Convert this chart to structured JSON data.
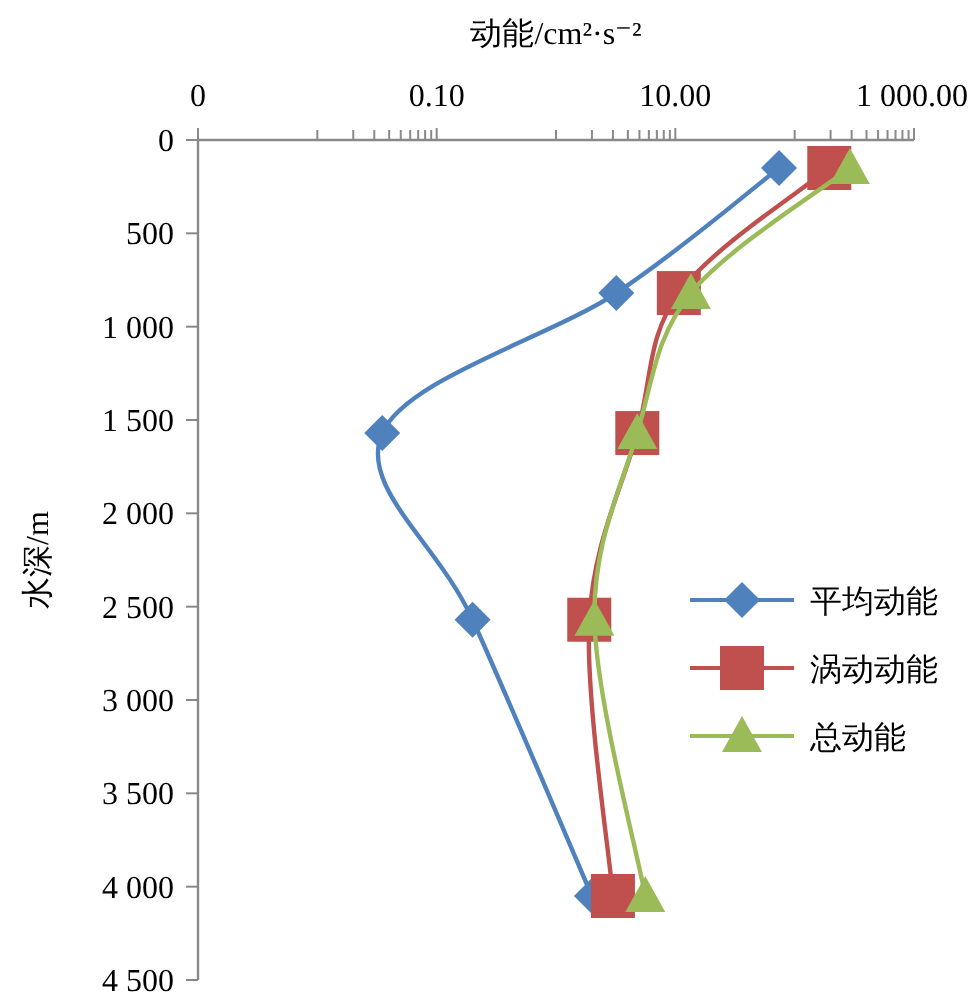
{
  "chart_data": {
    "type": "line",
    "xlabel": "动能/cm²·s⁻²",
    "ylabel": "水深/m",
    "log": "x",
    "xlim": [
      0.001,
      1000
    ],
    "xticks": [
      {
        "value": 0.001,
        "label": "0"
      },
      {
        "value": 0.01,
        "label": null
      },
      {
        "value": 0.02,
        "label": null
      },
      {
        "value": 0.03,
        "label": null
      },
      {
        "value": 0.04,
        "label": null
      },
      {
        "value": 0.05,
        "label": null
      },
      {
        "value": 0.06,
        "label": null
      },
      {
        "value": 0.07,
        "label": null
      },
      {
        "value": 0.08,
        "label": null
      },
      {
        "value": 0.09,
        "label": null
      },
      {
        "value": 0.1,
        "label": "0.10"
      },
      {
        "value": 1,
        "label": null
      },
      {
        "value": 2,
        "label": null
      },
      {
        "value": 3,
        "label": null
      },
      {
        "value": 4,
        "label": null
      },
      {
        "value": 5,
        "label": null
      },
      {
        "value": 6,
        "label": null
      },
      {
        "value": 7,
        "label": null
      },
      {
        "value": 8,
        "label": null
      },
      {
        "value": 9,
        "label": null
      },
      {
        "value": 10,
        "label": "10.00"
      },
      {
        "value": 100,
        "label": null
      },
      {
        "value": 200,
        "label": null
      },
      {
        "value": 300,
        "label": null
      },
      {
        "value": 400,
        "label": null
      },
      {
        "value": 500,
        "label": null
      },
      {
        "value": 600,
        "label": null
      },
      {
        "value": 700,
        "label": null
      },
      {
        "value": 800,
        "label": null
      },
      {
        "value": 900,
        "label": null
      },
      {
        "value": 1000,
        "label": "1 000.00"
      }
    ],
    "ylim": [
      4500,
      0
    ],
    "yticks": [
      0,
      500,
      {
        "value": 1000,
        "label": "1 000"
      },
      {
        "value": 1500,
        "label": "1 500"
      },
      {
        "value": 2000,
        "label": "2 000"
      },
      {
        "value": 2500,
        "label": "2 500"
      },
      {
        "value": 3000,
        "label": "3 000"
      },
      {
        "value": 3500,
        "label": "3 500"
      },
      {
        "value": 4000,
        "label": "4 000"
      },
      {
        "value": 4500,
        "label": "4 500"
      }
    ],
    "grid": false,
    "legend": "right",
    "line_style": "solid",
    "series": [
      {
        "name": "平均动能",
        "color": "#4f81bd",
        "marker": "diamond",
        "x": [
          74,
          3.2,
          0.035,
          0.2,
          2.0
        ],
        "values": [
          150,
          820,
          1570,
          2570,
          4050
        ]
      },
      {
        "name": "涡动动能",
        "color": "#c0504d",
        "marker": "square",
        "x": [
          195,
          10.7,
          4.8,
          1.9,
          3.0
        ],
        "values": [
          150,
          820,
          1570,
          2570,
          4050
        ]
      },
      {
        "name": "总动能",
        "color": "#9bbb59",
        "marker": "triangle",
        "x": [
          290,
          13.5,
          4.8,
          2.1,
          5.6
        ],
        "values": [
          150,
          820,
          1570,
          2570,
          4050
        ]
      }
    ]
  }
}
